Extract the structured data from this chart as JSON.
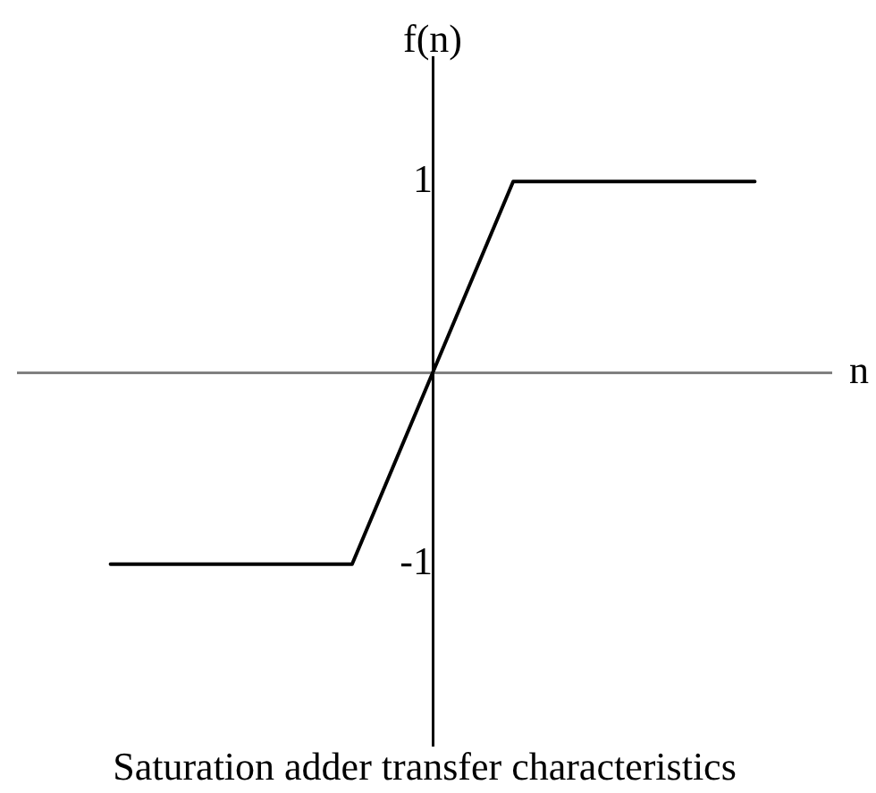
{
  "chart_data": {
    "type": "line",
    "title": "Saturation adder transfer characteristics",
    "xlabel": "n",
    "ylabel": "f(n)",
    "categories": [
      null,
      null,
      null,
      null,
      null,
      null,
      null,
      null,
      null
    ],
    "values": [
      -1,
      -1,
      -1,
      -1,
      0,
      1,
      1,
      1,
      1
    ],
    "color": "#000000",
    "ylim": [
      -1.95,
      1.65
    ],
    "yticks": [
      -1,
      1
    ],
    "tick_labels": "y",
    "marker": "none"
  }
}
